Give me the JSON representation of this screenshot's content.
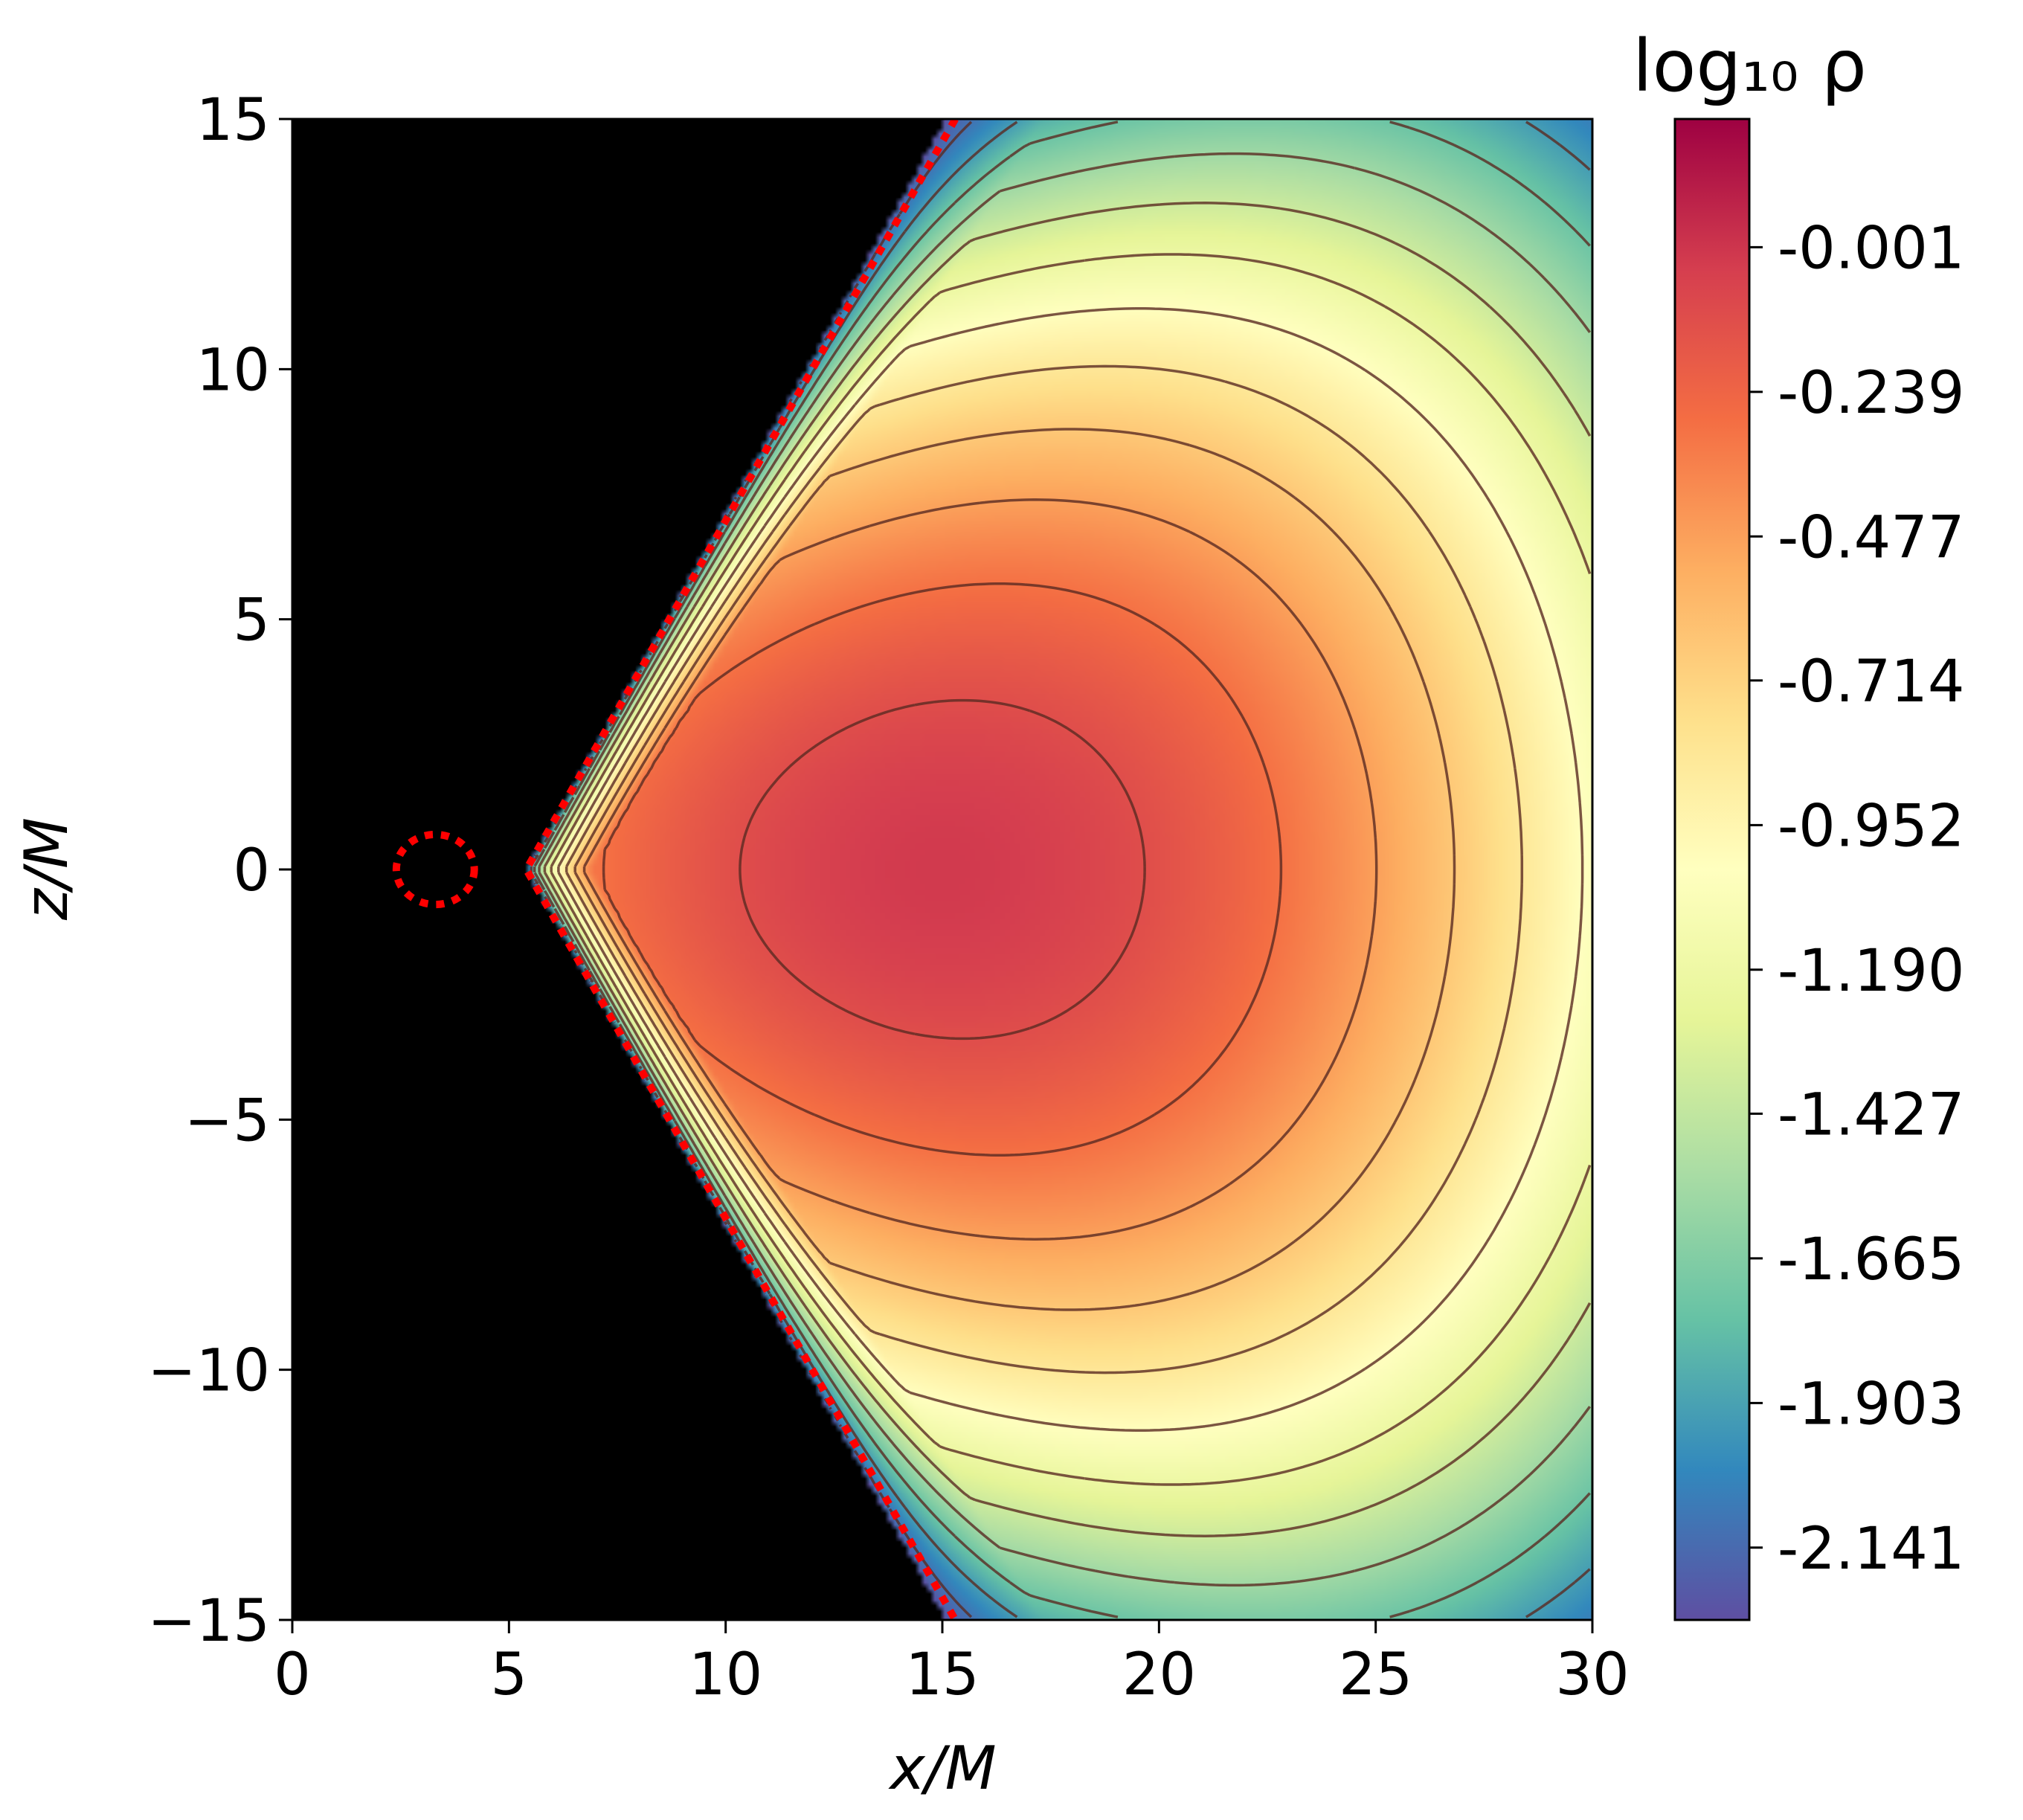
{
  "chart_data": {
    "type": "heatmap",
    "title": "",
    "xlabel": "x/M",
    "ylabel": "z/M",
    "xlim": [
      0,
      30
    ],
    "ylim": [
      -15,
      15
    ],
    "x_ticks": [
      0,
      5,
      10,
      15,
      20,
      25,
      30
    ],
    "x_tick_labels": [
      "0",
      "5",
      "10",
      "15",
      "20",
      "25",
      "30"
    ],
    "y_ticks": [
      15,
      10,
      5,
      0,
      -5,
      -10,
      -15
    ],
    "y_tick_labels": [
      "15",
      "10",
      "5",
      "0",
      "−5",
      "−10",
      "−15"
    ],
    "colorbar": {
      "title": "log₁₀ ρ",
      "colormap": "Spectral_r",
      "range": [
        -2.26,
        0.21
      ],
      "ticks": [
        -0.001,
        -0.239,
        -0.477,
        -0.714,
        -0.952,
        -1.19,
        -1.427,
        -1.665,
        -1.903,
        -2.141
      ],
      "tick_labels": [
        "-0.001",
        "-0.239",
        "-0.477",
        "-0.714",
        "-0.952",
        "-1.190",
        "-1.427",
        "-1.665",
        "-1.903",
        "-2.141"
      ]
    },
    "background": "#000000",
    "density_maximum": {
      "x": 15.0,
      "z": 0.0
    },
    "torus_inner_edge": {
      "x": 5.0,
      "z": 0.0
    },
    "boundary_outline": {
      "style": "dotted",
      "color": "#ff0000"
    },
    "contour_color": "#5a2a22",
    "grid": false
  }
}
